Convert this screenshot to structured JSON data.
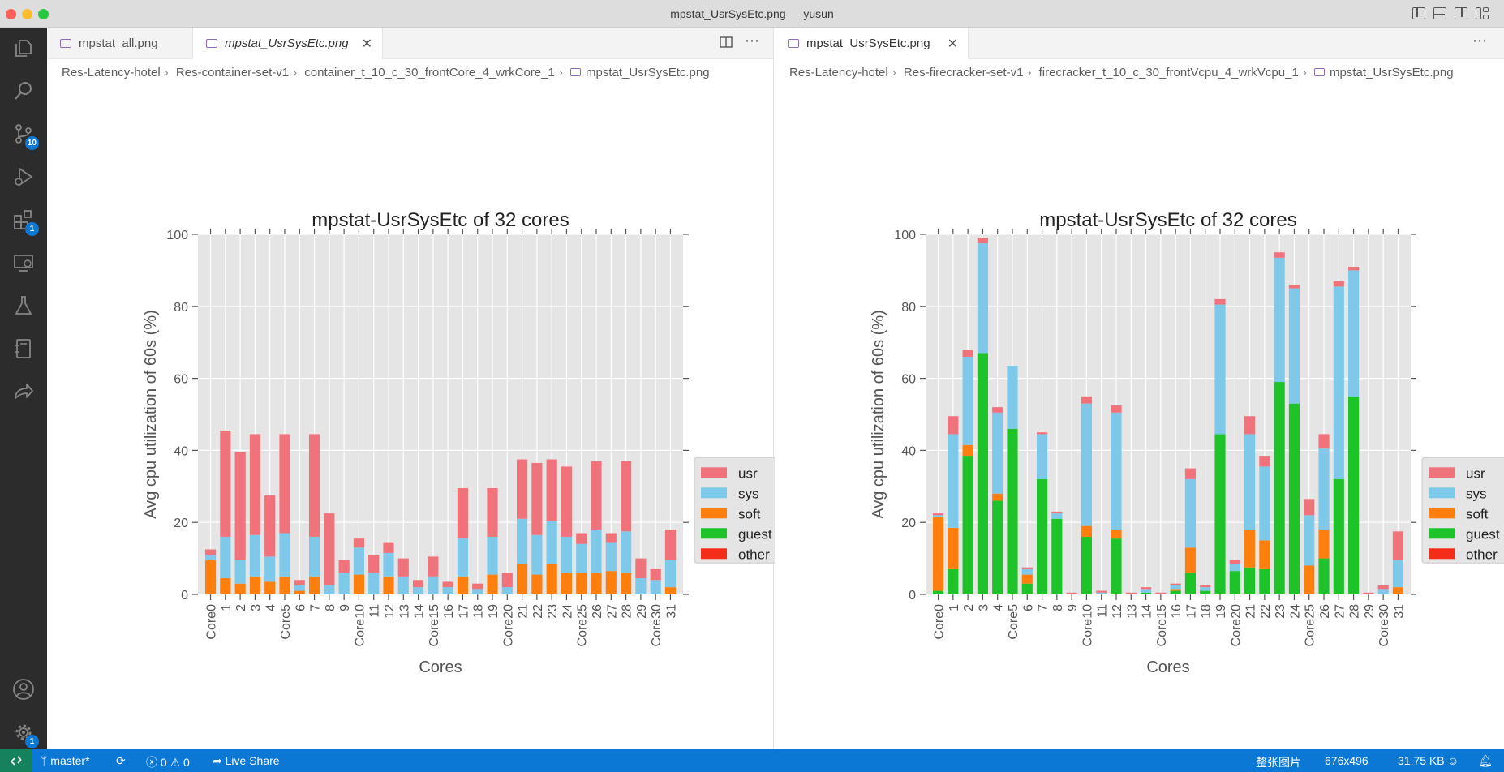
{
  "window": {
    "title": "mpstat_UsrSysEtc.png — yusun"
  },
  "activity_bar": {
    "source_control_badge": "10",
    "extensions_badge": "1",
    "settings_badge": "1"
  },
  "left_pane": {
    "tabs": [
      {
        "label": "mpstat_all.png"
      },
      {
        "label": "mpstat_UsrSysEtc.png"
      }
    ],
    "breadcrumbs": [
      "Res-Latency-hotel",
      "Res-container-set-v1",
      "container_t_10_c_30_frontCore_4_wrkCore_1",
      "mpstat_UsrSysEtc.png"
    ]
  },
  "right_pane": {
    "tabs": [
      {
        "label": "mpstat_UsrSysEtc.png"
      }
    ],
    "breadcrumbs": [
      "Res-Latency-hotel",
      "Res-firecracker-set-v1",
      "firecracker_t_10_c_30_frontVcpu_4_wrkVcpu_1",
      "mpstat_UsrSysEtc.png"
    ]
  },
  "status_bar": {
    "branch": "master*",
    "errors": "0",
    "warnings": "0",
    "live_share": "Live Share",
    "image_label": "整张图片",
    "dimensions": "676x496",
    "file_size": "31.75 KB"
  },
  "chart_data": [
    {
      "type": "bar",
      "stacked": true,
      "title": "mpstat-UsrSysEtc of 32 cores",
      "xlabel": "Cores",
      "ylabel": "Avg cpu utilization of 60s (%)",
      "ylim": [
        0,
        100
      ],
      "yticks": [
        "0",
        "20",
        "40",
        "60",
        "80",
        "100"
      ],
      "grid": true,
      "legend_position": "right",
      "categories": [
        "Core0",
        "1",
        "2",
        "3",
        "4",
        "Core5",
        "6",
        "7",
        "8",
        "9",
        "Core10",
        "11",
        "12",
        "13",
        "14",
        "Core15",
        "16",
        "17",
        "18",
        "19",
        "Core20",
        "21",
        "22",
        "23",
        "24",
        "Core25",
        "26",
        "27",
        "28",
        "29",
        "Core30",
        "31"
      ],
      "series": [
        {
          "name": "other",
          "color": "#f42d1a",
          "values": [
            0,
            0,
            0,
            0,
            0,
            0,
            0,
            0,
            0,
            0,
            0,
            0,
            0,
            0,
            0,
            0,
            0,
            0,
            0,
            0,
            0,
            0,
            0,
            0,
            0,
            0,
            0,
            0,
            0,
            0,
            0,
            0
          ]
        },
        {
          "name": "guest",
          "color": "#1ec32a",
          "values": [
            0,
            0,
            0,
            0,
            0,
            0,
            0,
            0,
            0,
            0,
            0,
            0,
            0,
            0,
            0,
            0,
            0,
            0,
            0,
            0,
            0,
            0,
            0,
            0,
            0,
            0,
            0,
            0,
            0,
            0,
            0,
            0
          ]
        },
        {
          "name": "soft",
          "color": "#ff7f0e",
          "values": [
            9.5,
            4.5,
            3,
            5,
            3.5,
            5,
            1,
            5,
            0,
            0,
            5.5,
            0,
            5,
            0,
            0,
            0,
            0,
            5,
            0,
            5.5,
            0,
            8.5,
            5.5,
            8.5,
            6,
            6,
            6,
            6.5,
            6,
            0,
            0,
            2
          ]
        },
        {
          "name": "sys",
          "color": "#7ec9ea",
          "values": [
            1.5,
            11.5,
            6.5,
            11.5,
            7,
            12,
            1.5,
            11,
            2.5,
            6,
            7.5,
            6,
            6.5,
            5,
            2,
            5,
            2,
            10.5,
            1.5,
            10.5,
            2,
            12.5,
            11,
            12,
            10,
            8,
            12,
            8,
            11.5,
            4.5,
            4,
            7.5
          ]
        },
        {
          "name": "usr",
          "color": "#f0737b",
          "values": [
            1.5,
            29.5,
            30,
            28,
            17,
            27.5,
            1.5,
            28.5,
            20,
            3.5,
            2.5,
            5,
            3,
            5,
            2,
            5.5,
            1.5,
            14,
            1.5,
            13.5,
            4,
            16.5,
            20,
            17,
            19.5,
            3,
            19,
            2.5,
            19.5,
            5.5,
            3,
            8.5
          ]
        }
      ]
    },
    {
      "type": "bar",
      "stacked": true,
      "title": "mpstat-UsrSysEtc of 32 cores",
      "xlabel": "Cores",
      "ylabel": "Avg cpu utilization of 60s (%)",
      "ylim": [
        0,
        100
      ],
      "yticks": [
        "0",
        "20",
        "40",
        "60",
        "80",
        "100"
      ],
      "grid": true,
      "legend_position": "right",
      "categories": [
        "Core0",
        "1",
        "2",
        "3",
        "4",
        "Core5",
        "6",
        "7",
        "8",
        "9",
        "Core10",
        "11",
        "12",
        "13",
        "14",
        "Core15",
        "16",
        "17",
        "18",
        "19",
        "Core20",
        "21",
        "22",
        "23",
        "24",
        "Core25",
        "26",
        "27",
        "28",
        "29",
        "Core30",
        "31"
      ],
      "series": [
        {
          "name": "other",
          "color": "#f42d1a",
          "values": [
            0,
            0,
            0,
            0,
            0,
            0,
            0,
            0,
            0,
            0,
            0,
            0,
            0,
            0,
            0,
            0,
            0,
            0,
            0,
            0,
            0,
            0,
            0,
            0,
            0,
            0,
            0,
            0,
            0,
            0,
            0,
            0
          ]
        },
        {
          "name": "guest",
          "color": "#1ec32a",
          "values": [
            1,
            7,
            38.5,
            67,
            26,
            46,
            3,
            32,
            21,
            0,
            16,
            0,
            15.5,
            0,
            0.5,
            0,
            1,
            6,
            1,
            44.5,
            6.5,
            7.5,
            7,
            59,
            53,
            0,
            10,
            32,
            55,
            0,
            0,
            0
          ]
        },
        {
          "name": "soft",
          "color": "#ff7f0e",
          "values": [
            20.5,
            11.5,
            3,
            0,
            2,
            0,
            2.5,
            0,
            0,
            0,
            3,
            0,
            2.5,
            0,
            0,
            0,
            0.5,
            7,
            0,
            0,
            0,
            10.5,
            8,
            0,
            0,
            8,
            8,
            0,
            0,
            0,
            0,
            2
          ]
        },
        {
          "name": "sys",
          "color": "#7ec9ea",
          "values": [
            0.5,
            26,
            24.5,
            30.5,
            22.5,
            17.5,
            1.5,
            12.5,
            1.5,
            0,
            34,
            0.5,
            32.5,
            0,
            1,
            0,
            1,
            19,
            1,
            36,
            2,
            26.5,
            20.5,
            34.5,
            32,
            14,
            22.5,
            53.5,
            35,
            0,
            1.5,
            7.5
          ]
        },
        {
          "name": "usr",
          "color": "#f0737b",
          "values": [
            0.5,
            5,
            2,
            1.5,
            1.5,
            0,
            0.5,
            0.5,
            0.5,
            0.5,
            2,
            0.5,
            2,
            0.5,
            0.5,
            0.5,
            0.5,
            3,
            0.5,
            1.5,
            1,
            5,
            3,
            1.5,
            1,
            4.5,
            4,
            1.5,
            1,
            0.5,
            1,
            8
          ]
        }
      ]
    }
  ]
}
